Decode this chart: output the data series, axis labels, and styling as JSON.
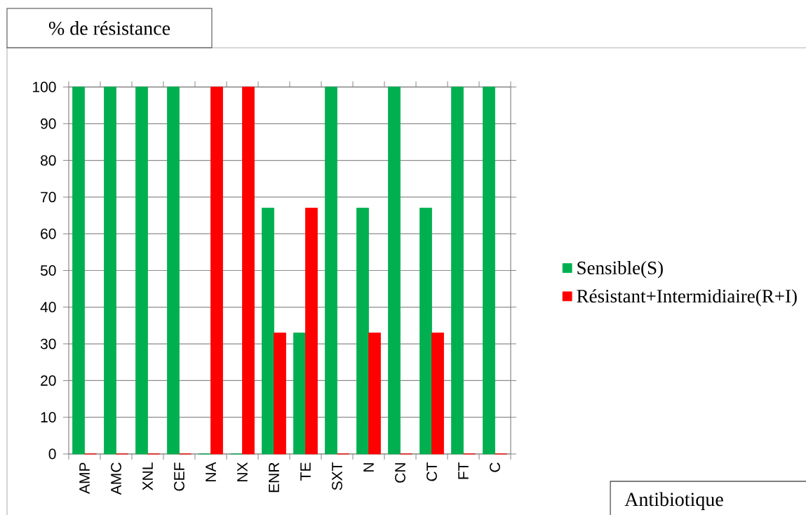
{
  "chart_data": {
    "type": "bar",
    "ylabel": "% de résistance",
    "annotations": [
      "Antibiotique"
    ],
    "categories": [
      "AMP",
      "AMC",
      "XNL",
      "CEF",
      "NA",
      "NX",
      "ENR",
      "TE",
      "SXT",
      "N",
      "CN",
      "CT",
      "FT",
      "C"
    ],
    "series": [
      {
        "name": "Sensible(S)",
        "color": "#00b050",
        "values": [
          100,
          100,
          100,
          100,
          0,
          0,
          67,
          33,
          100,
          67,
          100,
          67,
          100,
          100
        ]
      },
      {
        "name": "Résistant+Intermidiaire(R+I)",
        "color": "#ff0000",
        "values": [
          0,
          0,
          0,
          0,
          100,
          100,
          33,
          67,
          0,
          33,
          0,
          33,
          0,
          0
        ]
      }
    ],
    "ylim": [
      0,
      100
    ],
    "yticks": [
      0,
      10,
      20,
      30,
      40,
      50,
      60,
      70,
      80,
      90,
      100
    ],
    "grid": "y",
    "legend": "right"
  }
}
